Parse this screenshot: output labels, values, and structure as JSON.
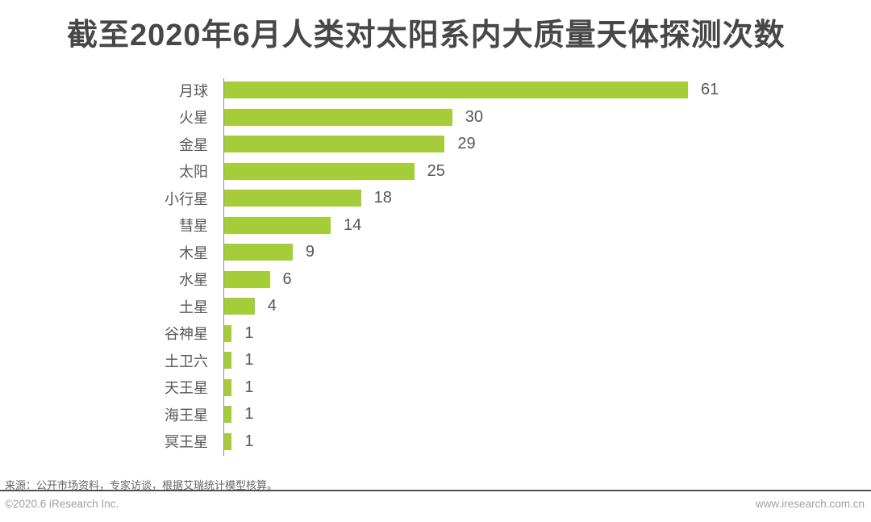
{
  "title": "截至2020年6月人类对太阳系内大质量天体探测次数",
  "chart_data": {
    "type": "bar",
    "orientation": "horizontal",
    "title": "截至2020年6月人类对太阳系内大质量天体探测次数",
    "categories": [
      "月球",
      "火星",
      "金星",
      "太阳",
      "小行星",
      "彗星",
      "木星",
      "水星",
      "土星",
      "谷神星",
      "土卫六",
      "天王星",
      "海王星",
      "冥王星"
    ],
    "values": [
      61,
      30,
      29,
      25,
      18,
      14,
      9,
      6,
      4,
      1,
      1,
      1,
      1,
      1
    ],
    "xlabel": "",
    "ylabel": "",
    "xlim": [
      0,
      61
    ],
    "grid": false,
    "legend": false,
    "value_labels_shown": true,
    "bar_color": "#a5cd39",
    "axis_color": "#8f8f8f",
    "label_color": "#595757"
  },
  "footer": {
    "source": "来源：公开市场资料，专家访谈，根据艾瑞统计模型核算。",
    "copyright": "©2020.6 iResearch Inc.",
    "website": "www.iresearch.com.cn"
  }
}
